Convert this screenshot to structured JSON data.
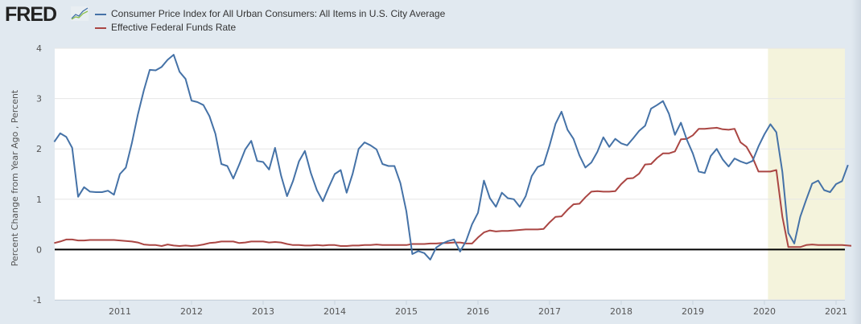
{
  "header": {
    "logo_text": "FRED",
    "logo_icon": "chart-line-icon"
  },
  "legend": [
    {
      "label": "Consumer Price Index for All Urban Consumers: All Items in U.S. City Average",
      "color": "#4572a7"
    },
    {
      "label": "Effective Federal Funds Rate",
      "color": "#aa4643"
    }
  ],
  "chart_data": {
    "type": "line",
    "title": "",
    "xlabel": "",
    "ylabel": "Percent Change from Year Ago , Percent",
    "ylim": [
      -1,
      4
    ],
    "yticks": [
      "-1",
      "0",
      "1",
      "2",
      "3",
      "4"
    ],
    "xticks": [
      "2011",
      "2012",
      "2013",
      "2014",
      "2015",
      "2016",
      "2017",
      "2018",
      "2019",
      "2020",
      "2021"
    ],
    "x_start": "2010-02",
    "x_end": "2021-03",
    "frequency": "monthly",
    "grid": true,
    "zero_line": true,
    "legend_position": "top",
    "recession_shading": {
      "start": "2020-02",
      "end": "2021-03",
      "color": "#f4f3dc"
    },
    "series": [
      {
        "name": "Consumer Price Index for All Urban Consumers: All Items in U.S. City Average",
        "color": "#4572a7",
        "values": [
          2.14,
          2.31,
          2.24,
          2.02,
          1.05,
          1.24,
          1.15,
          1.14,
          1.14,
          1.17,
          1.09,
          1.5,
          1.63,
          2.11,
          2.68,
          3.16,
          3.57,
          3.56,
          3.63,
          3.77,
          3.87,
          3.53,
          3.39,
          2.96,
          2.93,
          2.87,
          2.65,
          2.3,
          1.7,
          1.66,
          1.41,
          1.69,
          1.99,
          2.16,
          1.76,
          1.74,
          1.59,
          2.02,
          1.47,
          1.06,
          1.36,
          1.75,
          1.96,
          1.52,
          1.18,
          0.96,
          1.24,
          1.5,
          1.58,
          1.13,
          1.51,
          2.0,
          2.13,
          2.07,
          1.99,
          1.7,
          1.66,
          1.66,
          1.32,
          0.76,
          -0.09,
          -0.03,
          -0.07,
          -0.2,
          0.04,
          0.12,
          0.17,
          0.2,
          -0.04,
          0.17,
          0.5,
          0.73,
          1.37,
          1.02,
          0.85,
          1.13,
          1.02,
          1.0,
          0.85,
          1.06,
          1.46,
          1.64,
          1.69,
          2.07,
          2.5,
          2.74,
          2.38,
          2.2,
          1.87,
          1.63,
          1.73,
          1.94,
          2.23,
          2.04,
          2.2,
          2.11,
          2.07,
          2.21,
          2.36,
          2.46,
          2.8,
          2.87,
          2.95,
          2.7,
          2.28,
          2.52,
          2.18,
          1.91,
          1.55,
          1.52,
          1.86,
          2.0,
          1.79,
          1.65,
          1.81,
          1.75,
          1.71,
          1.76,
          2.05,
          2.29,
          2.49,
          2.33,
          1.54,
          0.33,
          0.12,
          0.65,
          0.99,
          1.31,
          1.37,
          1.18,
          1.14,
          1.3,
          1.36,
          1.68
        ]
      },
      {
        "name": "Effective Federal Funds Rate",
        "color": "#aa4643",
        "values": [
          0.13,
          0.16,
          0.2,
          0.2,
          0.18,
          0.18,
          0.19,
          0.19,
          0.19,
          0.19,
          0.19,
          0.18,
          0.17,
          0.16,
          0.14,
          0.1,
          0.09,
          0.09,
          0.07,
          0.1,
          0.08,
          0.07,
          0.08,
          0.07,
          0.08,
          0.1,
          0.13,
          0.14,
          0.16,
          0.16,
          0.16,
          0.13,
          0.14,
          0.16,
          0.16,
          0.16,
          0.14,
          0.15,
          0.14,
          0.11,
          0.09,
          0.09,
          0.08,
          0.08,
          0.09,
          0.08,
          0.09,
          0.09,
          0.07,
          0.07,
          0.08,
          0.08,
          0.09,
          0.09,
          0.1,
          0.09,
          0.09,
          0.09,
          0.09,
          0.09,
          0.11,
          0.11,
          0.11,
          0.12,
          0.12,
          0.13,
          0.13,
          0.14,
          0.14,
          0.12,
          0.12,
          0.24,
          0.34,
          0.38,
          0.36,
          0.37,
          0.37,
          0.38,
          0.39,
          0.4,
          0.4,
          0.4,
          0.41,
          0.54,
          0.65,
          0.66,
          0.79,
          0.9,
          0.91,
          1.04,
          1.15,
          1.16,
          1.15,
          1.15,
          1.16,
          1.3,
          1.41,
          1.42,
          1.51,
          1.69,
          1.7,
          1.82,
          1.91,
          1.91,
          1.95,
          2.19,
          2.2,
          2.27,
          2.4,
          2.4,
          2.41,
          2.42,
          2.39,
          2.38,
          2.4,
          2.13,
          2.04,
          1.83,
          1.55,
          1.55,
          1.55,
          1.58,
          0.65,
          0.05,
          0.05,
          0.05,
          0.09,
          0.1,
          0.09,
          0.09,
          0.09,
          0.09,
          0.09,
          0.08,
          0.07
        ]
      }
    ]
  }
}
